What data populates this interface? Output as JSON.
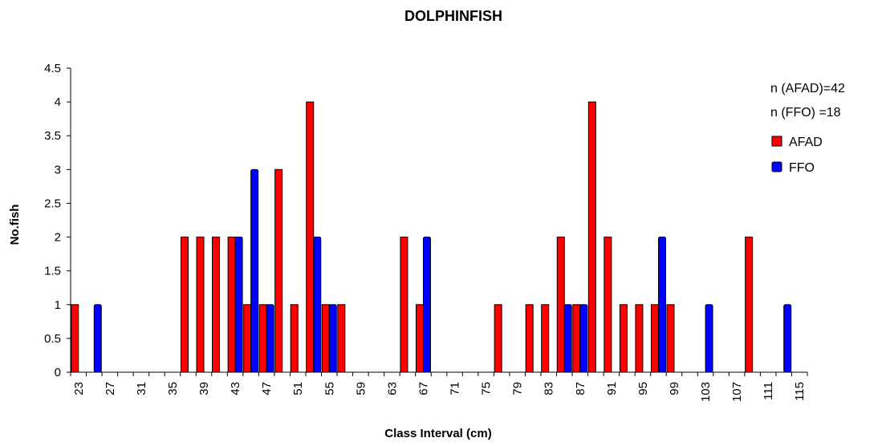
{
  "chart_data": {
    "type": "bar",
    "title": "DOLPHINFISH",
    "xlabel": "Class Interval (cm)",
    "ylabel": "No.fish",
    "ylim": [
      0,
      4.5
    ],
    "yticks": [
      "0",
      "0.5",
      "1",
      "1.5",
      "2",
      "2.5",
      "3",
      "3.5",
      "4",
      "4.5"
    ],
    "grid": false,
    "legend_position": "top-right",
    "categories": [
      "23",
      "25",
      "27",
      "29",
      "31",
      "33",
      "35",
      "37",
      "39",
      "41",
      "43",
      "45",
      "47",
      "49",
      "51",
      "53",
      "55",
      "57",
      "59",
      "61",
      "63",
      "65",
      "67",
      "69",
      "71",
      "73",
      "75",
      "77",
      "79",
      "81",
      "83",
      "85",
      "87",
      "89",
      "91",
      "93",
      "95",
      "97",
      "99",
      "101",
      "103",
      "105",
      "107",
      "109",
      "111",
      "113",
      "115"
    ],
    "visible_tick_labels": [
      "23",
      "27",
      "31",
      "35",
      "39",
      "43",
      "47",
      "51",
      "55",
      "59",
      "63",
      "67",
      "71",
      "75",
      "79",
      "83",
      "87",
      "91",
      "95",
      "99",
      "103",
      "107",
      "111",
      "115"
    ],
    "series": [
      {
        "name": "AFAD",
        "color": "#ff0000",
        "values": [
          1,
          0,
          0,
          0,
          0,
          0,
          0,
          2,
          2,
          2,
          2,
          1,
          1,
          3,
          1,
          4,
          1,
          1,
          0,
          0,
          0,
          2,
          1,
          0,
          0,
          0,
          0,
          1,
          0,
          1,
          1,
          2,
          1,
          4,
          2,
          1,
          1,
          1,
          1,
          0,
          0,
          0,
          0,
          2,
          0,
          0,
          0
        ]
      },
      {
        "name": "FFO",
        "color": "#0000ff",
        "values": [
          0,
          1,
          0,
          0,
          0,
          0,
          0,
          0,
          0,
          0,
          2,
          3,
          1,
          0,
          0,
          2,
          1,
          0,
          0,
          0,
          0,
          0,
          2,
          0,
          0,
          0,
          0,
          0,
          0,
          0,
          0,
          1,
          1,
          0,
          0,
          0,
          0,
          2,
          0,
          0,
          1,
          0,
          0,
          0,
          0,
          1,
          0
        ]
      }
    ],
    "annotations": [
      "n (AFAD)=42",
      "n (FFO) =18"
    ]
  }
}
